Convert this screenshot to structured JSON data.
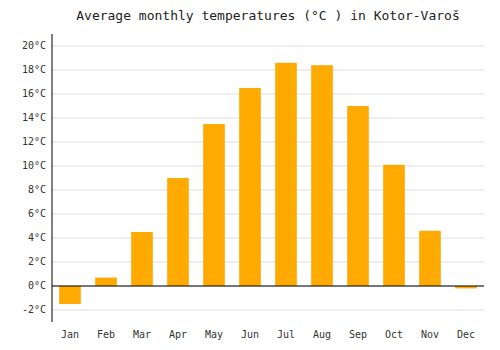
{
  "chart_data": {
    "type": "bar",
    "title": "Average monthly temperatures (°C ) in Kotor-Varoš",
    "categories": [
      "Jan",
      "Feb",
      "Mar",
      "Apr",
      "May",
      "Jun",
      "Jul",
      "Aug",
      "Sep",
      "Oct",
      "Nov",
      "Dec"
    ],
    "values": [
      -1.5,
      0.7,
      4.5,
      9.0,
      13.5,
      16.5,
      18.6,
      18.4,
      15.0,
      10.1,
      4.6,
      -0.2
    ],
    "color": "#FFAA00",
    "ylim": [
      -3,
      21
    ],
    "yticks": [
      {
        "value": -2,
        "label": "-2°C"
      },
      {
        "value": 0,
        "label": "0°C"
      },
      {
        "value": 2,
        "label": "2°C"
      },
      {
        "value": 4,
        "label": "4°C"
      },
      {
        "value": 6,
        "label": "6°C"
      },
      {
        "value": 8,
        "label": "8°C"
      },
      {
        "value": 10,
        "label": "10°C"
      },
      {
        "value": 12,
        "label": "12°C"
      },
      {
        "value": 14,
        "label": "14°C"
      },
      {
        "value": 16,
        "label": "16°C"
      },
      {
        "value": 18,
        "label": "18°C"
      },
      {
        "value": 20,
        "label": "20°C"
      }
    ],
    "grid": true
  }
}
